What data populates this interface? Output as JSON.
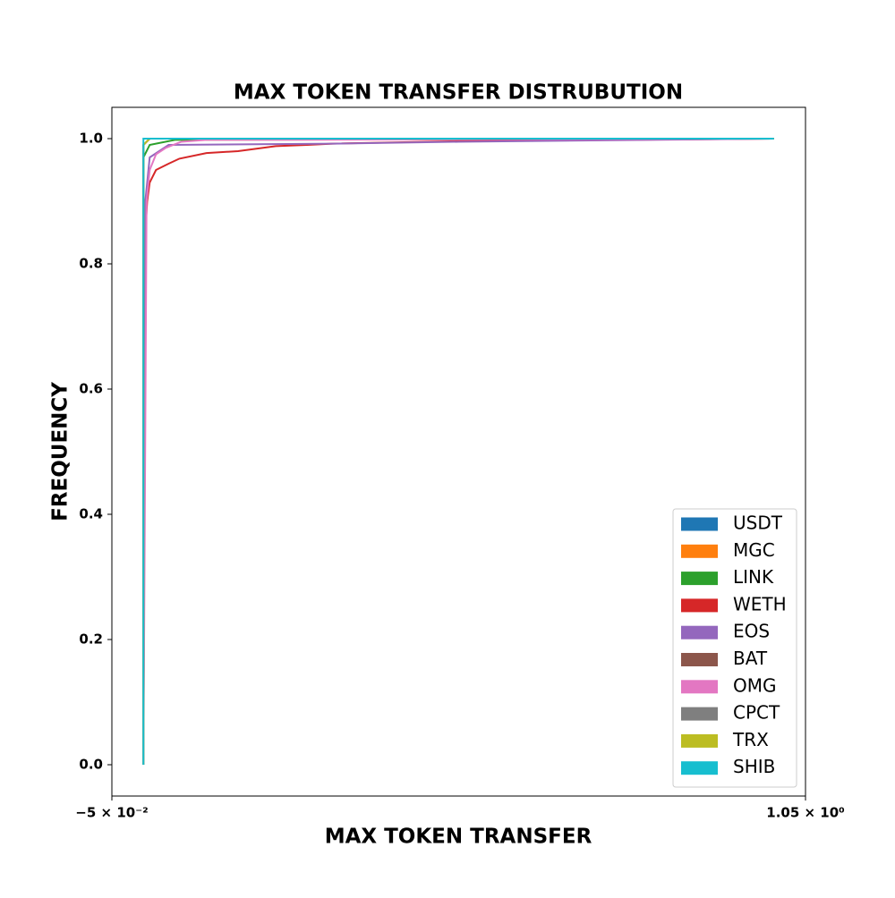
{
  "chart_data": {
    "type": "line",
    "title": "MAX TOKEN TRANSFER DISTRUBUTION",
    "x_label": "MAX TOKEN TRANSFER",
    "y_label": "FREQUENCY",
    "xlim": [
      -0.05,
      1.05
    ],
    "ylim": [
      -0.05,
      1.05
    ],
    "xticks": [
      {
        "value": -0.05,
        "label": "−5 × 10⁻²"
      },
      {
        "value": 1.05,
        "label": "1.05 × 10⁰"
      }
    ],
    "yticks": [
      {
        "value": 0,
        "label": "0.0"
      },
      {
        "value": 0.2,
        "label": "0.2"
      },
      {
        "value": 0.4,
        "label": "0.4"
      },
      {
        "value": 0.6,
        "label": "0.6"
      },
      {
        "value": 0.8,
        "label": "0.8"
      },
      {
        "value": 1,
        "label": "1.0"
      }
    ],
    "legend_position": "lower right",
    "series": [
      {
        "name": "USDT",
        "color": "#1f77b4",
        "x": [
          0,
          0,
          0.01,
          1
        ],
        "values": [
          0,
          0.99,
          1,
          1
        ]
      },
      {
        "name": "MGC",
        "color": "#ff7f0e",
        "x": [
          0,
          0,
          0.01,
          1
        ],
        "values": [
          0,
          0.99,
          1,
          1
        ]
      },
      {
        "name": "LINK",
        "color": "#2ca02c",
        "x": [
          0,
          0,
          0.01,
          0.05,
          1
        ],
        "values": [
          0,
          0.97,
          0.99,
          0.998,
          1
        ]
      },
      {
        "name": "WETH",
        "color": "#d62728",
        "x": [
          0,
          0.003,
          0.006,
          0.01,
          0.02,
          0.04,
          0.057,
          0.1,
          0.15,
          0.21,
          0.26,
          0.3,
          0.5,
          1
        ],
        "values": [
          0,
          0.85,
          0.9,
          0.93,
          0.95,
          0.96,
          0.968,
          0.977,
          0.98,
          0.988,
          0.99,
          0.992,
          0.996,
          1
        ]
      },
      {
        "name": "EOS",
        "color": "#9467bd",
        "x": [
          0,
          0.003,
          0.01,
          0.04,
          0.3,
          0.5,
          1
        ],
        "values": [
          0,
          0.9,
          0.97,
          0.99,
          0.992,
          0.995,
          1
        ]
      },
      {
        "name": "BAT",
        "color": "#8c564b",
        "x": [
          0,
          0,
          0.01,
          1
        ],
        "values": [
          0,
          0.99,
          1,
          1
        ]
      },
      {
        "name": "OMG",
        "color": "#e377c2",
        "x": [
          0,
          0.005,
          0.01,
          0.02,
          0.035,
          0.06,
          0.1,
          1
        ],
        "values": [
          0,
          0.9,
          0.95,
          0.975,
          0.985,
          0.995,
          0.998,
          1
        ]
      },
      {
        "name": "CPCT",
        "color": "#7f7f7f",
        "x": [
          0,
          0,
          0.01,
          1
        ],
        "values": [
          0,
          0.99,
          1,
          1
        ]
      },
      {
        "name": "TRX",
        "color": "#bcbd22",
        "x": [
          0,
          0,
          0.01,
          1
        ],
        "values": [
          0,
          0.99,
          1,
          1
        ]
      },
      {
        "name": "SHIB",
        "color": "#17becf",
        "x": [
          0,
          0,
          1
        ],
        "values": [
          0,
          1,
          1
        ]
      }
    ]
  }
}
